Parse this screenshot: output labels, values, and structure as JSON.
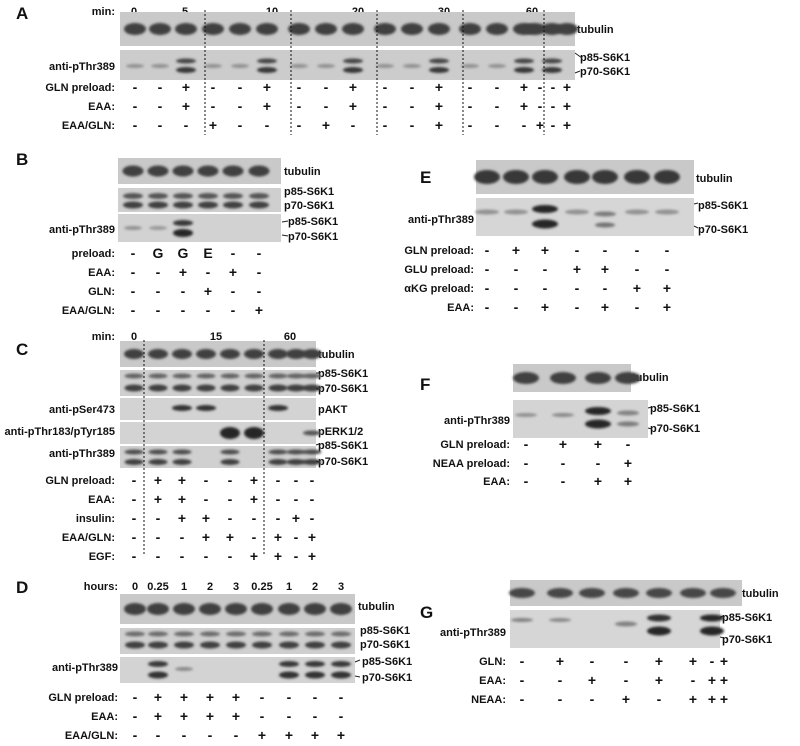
{
  "panels": [
    {
      "id": "A",
      "letter": "A",
      "col_header_label": "min:",
      "col_headers": [
        "0",
        "5",
        "10",
        "20",
        "30",
        "60"
      ],
      "blot_labels": [
        "tubulin",
        "p85-S6K1",
        "p70-S6K1"
      ],
      "row_label_on_blot": "anti-pThr389",
      "rows": [
        {
          "label": "GLN preload:",
          "values": [
            "-",
            "-",
            "+",
            "-",
            "-",
            "+",
            "-",
            "-",
            "+",
            "-",
            "-",
            "+",
            "-",
            "-",
            "+",
            "-",
            "-",
            "+"
          ]
        },
        {
          "label": "EAA:",
          "values": [
            "-",
            "-",
            "+",
            "-",
            "-",
            "+",
            "-",
            "-",
            "+",
            "-",
            "-",
            "+",
            "-",
            "-",
            "+",
            "-",
            "-",
            "+"
          ]
        },
        {
          "label": "EAA/GLN:",
          "values": [
            "-",
            "-",
            "-",
            "+",
            "-",
            "-",
            "-",
            "+",
            "-",
            "-",
            "-",
            "+",
            "-",
            "-",
            "-",
            "+",
            "-",
            "+"
          ]
        }
      ]
    },
    {
      "id": "B",
      "letter": "B",
      "blot_labels": [
        "tubulin",
        "p85-S6K1",
        "p70-S6K1",
        "p85-S6K1",
        "p70-S6K1"
      ],
      "row_label_on_blot": "anti-pThr389",
      "rows": [
        {
          "label": "preload:",
          "values": [
            "-",
            "G",
            "G",
            "E",
            "-",
            "-"
          ]
        },
        {
          "label": "EAA:",
          "values": [
            "-",
            "-",
            "+",
            "-",
            "+",
            "-"
          ]
        },
        {
          "label": "GLN:",
          "values": [
            "-",
            "-",
            "-",
            "+",
            "-",
            "-"
          ]
        },
        {
          "label": "EAA/GLN:",
          "values": [
            "-",
            "-",
            "-",
            "-",
            "-",
            "+"
          ]
        }
      ]
    },
    {
      "id": "C",
      "letter": "C",
      "col_header_label": "min:",
      "col_headers": [
        "0",
        "15",
        "60"
      ],
      "blot_labels": [
        "tubulin",
        "p85-S6K1",
        "p70-S6K1",
        "pAKT",
        "pERK1/2",
        "p85-S6K1",
        "p70-S6K1"
      ],
      "blot_row_labels": [
        "anti-pSer473",
        "anti-pThr183/pTyr185",
        "anti-pThr389"
      ],
      "rows": [
        {
          "label": "GLN preload:",
          "values": [
            "-",
            "+",
            "+",
            "-",
            "-",
            "+",
            "-",
            "-",
            "-"
          ]
        },
        {
          "label": "EAA:",
          "values": [
            "-",
            "+",
            "+",
            "-",
            "-",
            "+",
            "-",
            "-",
            "-"
          ]
        },
        {
          "label": "insulin:",
          "values": [
            "-",
            "-",
            "+",
            "+",
            "-",
            "-",
            "-",
            "+",
            "-"
          ]
        },
        {
          "label": "EAA/GLN:",
          "values": [
            "-",
            "-",
            "-",
            "+",
            "+",
            "-",
            "+",
            "-",
            "+"
          ]
        },
        {
          "label": "EGF:",
          "values": [
            "-",
            "-",
            "-",
            "-",
            "-",
            "+",
            "+",
            "-",
            "+"
          ]
        }
      ]
    },
    {
      "id": "D",
      "letter": "D",
      "col_header_label": "hours:",
      "col_headers": [
        "0",
        "0.25",
        "1",
        "2",
        "3",
        "0.25",
        "1",
        "2",
        "3"
      ],
      "blot_labels": [
        "tubulin",
        "p85-S6K1",
        "p70-S6K1",
        "p85-S6K1",
        "p70-S6K1"
      ],
      "row_label_on_blot": "anti-pThr389",
      "rows": [
        {
          "label": "GLN preload:",
          "values": [
            "-",
            "+",
            "+",
            "+",
            "+",
            "-",
            "-",
            "-",
            "-"
          ]
        },
        {
          "label": "EAA:",
          "values": [
            "-",
            "+",
            "+",
            "+",
            "+",
            "-",
            "-",
            "-",
            "-"
          ]
        },
        {
          "label": "EAA/GLN:",
          "values": [
            "-",
            "-",
            "-",
            "-",
            "-",
            "+",
            "+",
            "+",
            "+"
          ]
        }
      ]
    },
    {
      "id": "E",
      "letter": "E",
      "blot_labels": [
        "tubulin",
        "p85-S6K1",
        "p70-S6K1"
      ],
      "row_label_on_blot": "anti-pThr389",
      "rows": [
        {
          "label": "GLN preload:",
          "values": [
            "-",
            "+",
            "+",
            "-",
            "-",
            "-",
            "-"
          ]
        },
        {
          "label": "GLU preload:",
          "values": [
            "-",
            "-",
            "-",
            "+",
            "+",
            "-",
            "-"
          ]
        },
        {
          "label": "αKG preload:",
          "values": [
            "-",
            "-",
            "-",
            "-",
            "-",
            "+",
            "+"
          ]
        },
        {
          "label": "EAA:",
          "values": [
            "-",
            "-",
            "+",
            "-",
            "+",
            "-",
            "+"
          ]
        }
      ]
    },
    {
      "id": "F",
      "letter": "F",
      "blot_labels": [
        "tubulin",
        "p85-S6K1",
        "p70-S6K1"
      ],
      "row_label_on_blot": "anti-pThr389",
      "rows": [
        {
          "label": "GLN preload:",
          "values": [
            "-",
            "+",
            "+",
            "-"
          ]
        },
        {
          "label": "NEAA preload:",
          "values": [
            "-",
            "-",
            "-",
            "+"
          ]
        },
        {
          "label": "EAA:",
          "values": [
            "-",
            "-",
            "+",
            "+"
          ]
        }
      ]
    },
    {
      "id": "G",
      "letter": "G",
      "blot_labels": [
        "tubulin",
        "p85-S6K1",
        "p70-S6K1"
      ],
      "row_label_on_blot": "anti-pThr389",
      "rows": [
        {
          "label": "GLN:",
          "values": [
            "-",
            "+",
            "-",
            "-",
            "+",
            "+",
            "-",
            "+"
          ]
        },
        {
          "label": "EAA:",
          "values": [
            "-",
            "-",
            "+",
            "-",
            "+",
            "-",
            "+",
            "+"
          ]
        },
        {
          "label": "NEAA:",
          "values": [
            "-",
            "-",
            "-",
            "+",
            "-",
            "+",
            "+",
            "+"
          ]
        }
      ]
    }
  ]
}
